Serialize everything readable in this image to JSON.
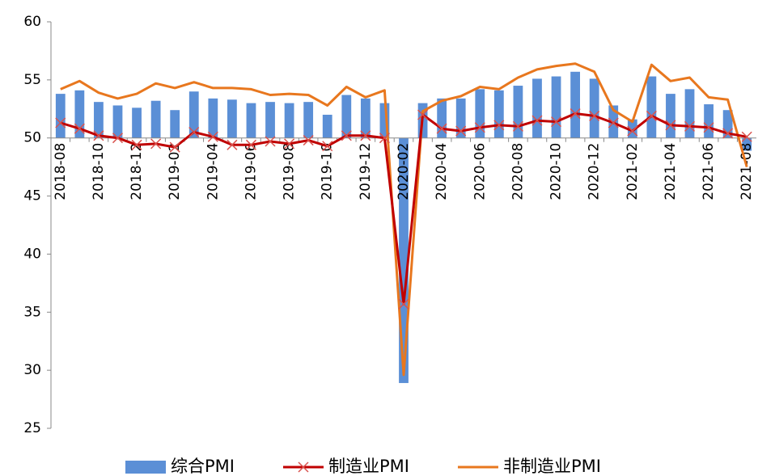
{
  "chart_data": {
    "type": "bar-line",
    "categories": [
      "2018-08",
      null,
      "2018-10",
      null,
      "2018-12",
      null,
      "2019-02",
      null,
      "2019-04",
      null,
      "2019-06",
      null,
      "2019-08",
      null,
      "2019-10",
      null,
      "2019-12",
      null,
      "2020-02",
      null,
      "2020-04",
      null,
      "2020-06",
      null,
      "2020-08",
      null,
      "2020-10",
      null,
      "2020-12",
      null,
      "2021-02",
      null,
      "2021-04",
      null,
      "2021-06",
      null,
      "2021-08"
    ],
    "series": [
      {
        "name": "综合PMI",
        "kind": "bar",
        "color": "#5b8fd6",
        "values": [
          53.8,
          54.1,
          53.1,
          52.8,
          52.6,
          53.2,
          52.4,
          54.0,
          53.4,
          53.3,
          53.0,
          53.1,
          53.0,
          53.1,
          52.0,
          53.7,
          53.4,
          53.0,
          28.9,
          53.0,
          53.4,
          53.4,
          54.2,
          54.1,
          54.5,
          55.1,
          55.3,
          55.7,
          55.1,
          52.8,
          51.6,
          55.3,
          53.8,
          54.2,
          52.9,
          52.4,
          48.9
        ]
      },
      {
        "name": "制造业PMI",
        "kind": "line",
        "marker": "x",
        "color": "#c00000",
        "marker_color": "#d9534f",
        "values": [
          51.3,
          50.8,
          50.2,
          50.0,
          49.4,
          49.5,
          49.2,
          50.5,
          50.1,
          49.4,
          49.4,
          49.7,
          49.5,
          49.8,
          49.3,
          50.2,
          50.2,
          50.0,
          35.7,
          52.0,
          50.8,
          50.6,
          50.9,
          51.1,
          51.0,
          51.5,
          51.4,
          52.1,
          51.9,
          51.3,
          50.6,
          51.9,
          51.1,
          51.0,
          50.9,
          50.4,
          50.1
        ]
      },
      {
        "name": "非制造业PMI",
        "kind": "line",
        "color": "#e8771e",
        "values": [
          54.2,
          54.9,
          53.9,
          53.4,
          53.8,
          54.7,
          54.3,
          54.8,
          54.3,
          54.3,
          54.2,
          53.7,
          53.8,
          53.7,
          52.8,
          54.4,
          53.5,
          54.1,
          29.6,
          52.3,
          53.2,
          53.6,
          54.4,
          54.2,
          55.2,
          55.9,
          56.2,
          56.4,
          55.7,
          52.4,
          51.4,
          56.3,
          54.9,
          55.2,
          53.5,
          53.3,
          47.5
        ]
      }
    ],
    "ylim": [
      25,
      60
    ],
    "yticks": [
      25,
      30,
      35,
      40,
      45,
      50,
      55,
      60
    ],
    "x_axis_crossing": 50,
    "grid": false,
    "legend": "bottom"
  }
}
